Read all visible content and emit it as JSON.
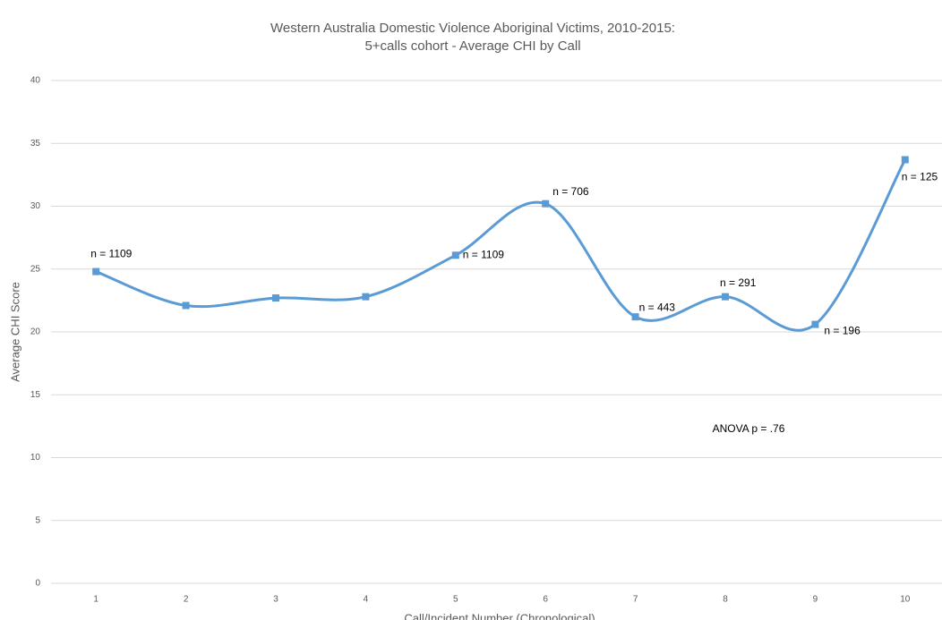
{
  "chart_data": {
    "type": "line",
    "title": [
      "Western Australia Domestic Violence Aboriginal Victims, 2010-2015:",
      "5+calls cohort - Average CHI by Call"
    ],
    "x_label": "Call/Incident Number (Chronological)",
    "y_label": "Average CHI Score",
    "categories": [
      "1",
      "2",
      "3",
      "4",
      "5",
      "6",
      "7",
      "8",
      "9",
      "10"
    ],
    "series": [
      {
        "name": "Average CHI",
        "color": "#5b9bd5",
        "values": [
          24.8,
          22.1,
          22.7,
          22.8,
          26.1,
          30.2,
          21.2,
          22.8,
          20.6,
          33.7
        ]
      }
    ],
    "point_labels": [
      "n = 1109",
      null,
      null,
      null,
      "n = 1109",
      "n = 706",
      "n = 443",
      "n = 291",
      "n = 196",
      "n = 125"
    ],
    "annotation": "ANOVA p = .76",
    "smooth": true,
    "ylim": [
      0,
      40
    ],
    "yticks": [
      0,
      5,
      10,
      15,
      20,
      25,
      30,
      35,
      40
    ],
    "grid": true
  }
}
